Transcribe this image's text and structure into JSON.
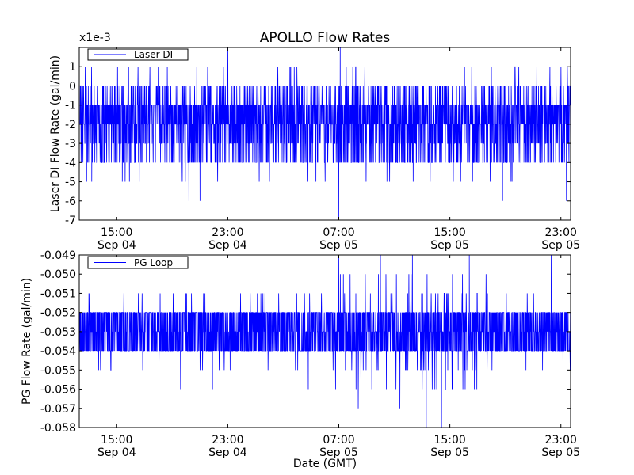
{
  "chart_data": [
    {
      "type": "line",
      "title": "APOLLO Flow Rates",
      "offset_text": "x1e-3",
      "xlabel": "",
      "ylabel": "Laser DI Flow Rate (gal/min)",
      "ylim": [
        -7,
        2
      ],
      "yticks": [
        {
          "value": 1,
          "label": "1"
        },
        {
          "value": 0,
          "label": "0"
        },
        {
          "value": -1,
          "label": "-1"
        },
        {
          "value": -2,
          "label": "-2"
        },
        {
          "value": -3,
          "label": "-3"
        },
        {
          "value": -4,
          "label": "-4"
        },
        {
          "value": -5,
          "label": "-5"
        },
        {
          "value": -6,
          "label": "-6"
        },
        {
          "value": -7,
          "label": "-7"
        }
      ],
      "xlim_hours_from_sep04_0000": [
        12.3,
        47.7
      ],
      "xticks": [
        {
          "hour": 15,
          "time": "15:00",
          "date": "Sep 04"
        },
        {
          "hour": 23,
          "time": "23:00",
          "date": "Sep 04"
        },
        {
          "hour": 31,
          "time": "07:00",
          "date": "Sep 05"
        },
        {
          "hour": 39,
          "time": "15:00",
          "date": "Sep 05"
        },
        {
          "hour": 47,
          "time": "23:00",
          "date": "Sep 05"
        }
      ],
      "legend": {
        "placement": "top-left"
      },
      "series": [
        {
          "name": "Laser DI",
          "color": "#0000ff",
          "typical_range": [
            -4,
            0
          ],
          "notable_points": [
            {
              "hour": 23.0,
              "value": 2.0
            },
            {
              "hour": 31.1,
              "value": 2.0
            },
            {
              "hour": 31.0,
              "value": -7.0
            },
            {
              "hour": 20.2,
              "value": -6.0
            },
            {
              "hour": 21.0,
              "value": -6.0
            },
            {
              "hour": 32.6,
              "value": -6.0
            },
            {
              "hour": 42.8,
              "value": -6.0
            },
            {
              "hour": 47.4,
              "value": -6.0
            },
            {
              "hour": 13.2,
              "value": -5.0
            },
            {
              "hour": 15.4,
              "value": -5.0
            }
          ]
        }
      ]
    },
    {
      "type": "line",
      "title": "",
      "xlabel": "Date (GMT)",
      "ylabel": "PG Flow Rate (gal/min)",
      "ylim": [
        -0.058,
        -0.049
      ],
      "yticks": [
        {
          "value": -0.049,
          "label": "-0.049"
        },
        {
          "value": -0.05,
          "label": "-0.050"
        },
        {
          "value": -0.051,
          "label": "-0.051"
        },
        {
          "value": -0.052,
          "label": "-0.052"
        },
        {
          "value": -0.053,
          "label": "-0.053"
        },
        {
          "value": -0.054,
          "label": "-0.054"
        },
        {
          "value": -0.055,
          "label": "-0.055"
        },
        {
          "value": -0.056,
          "label": "-0.056"
        },
        {
          "value": -0.057,
          "label": "-0.057"
        },
        {
          "value": -0.058,
          "label": "-0.058"
        }
      ],
      "xlim_hours_from_sep04_0000": [
        12.3,
        47.7
      ],
      "xticks": [
        {
          "hour": 15,
          "time": "15:00",
          "date": "Sep 04"
        },
        {
          "hour": 23,
          "time": "23:00",
          "date": "Sep 04"
        },
        {
          "hour": 31,
          "time": "07:00",
          "date": "Sep 05"
        },
        {
          "hour": 39,
          "time": "15:00",
          "date": "Sep 05"
        },
        {
          "hour": 47,
          "time": "23:00",
          "date": "Sep 05"
        }
      ],
      "legend": {
        "placement": "top-left"
      },
      "series": [
        {
          "name": "PG Loop",
          "color": "#0000ff",
          "typical_range": [
            -0.054,
            -0.052
          ],
          "notable_points": [
            {
              "hour": 31.0,
              "value": -0.049
            },
            {
              "hour": 34.0,
              "value": -0.049
            },
            {
              "hour": 36.3,
              "value": -0.049
            },
            {
              "hour": 40.4,
              "value": -0.049
            },
            {
              "hour": 46.3,
              "value": -0.049
            },
            {
              "hour": 37.3,
              "value": -0.058
            },
            {
              "hour": 38.4,
              "value": -0.058
            },
            {
              "hour": 19.6,
              "value": -0.056
            },
            {
              "hour": 21.9,
              "value": -0.056
            },
            {
              "hour": 28.8,
              "value": -0.056
            },
            {
              "hour": 32.4,
              "value": -0.057
            },
            {
              "hour": 35.4,
              "value": -0.057
            }
          ]
        }
      ]
    }
  ]
}
